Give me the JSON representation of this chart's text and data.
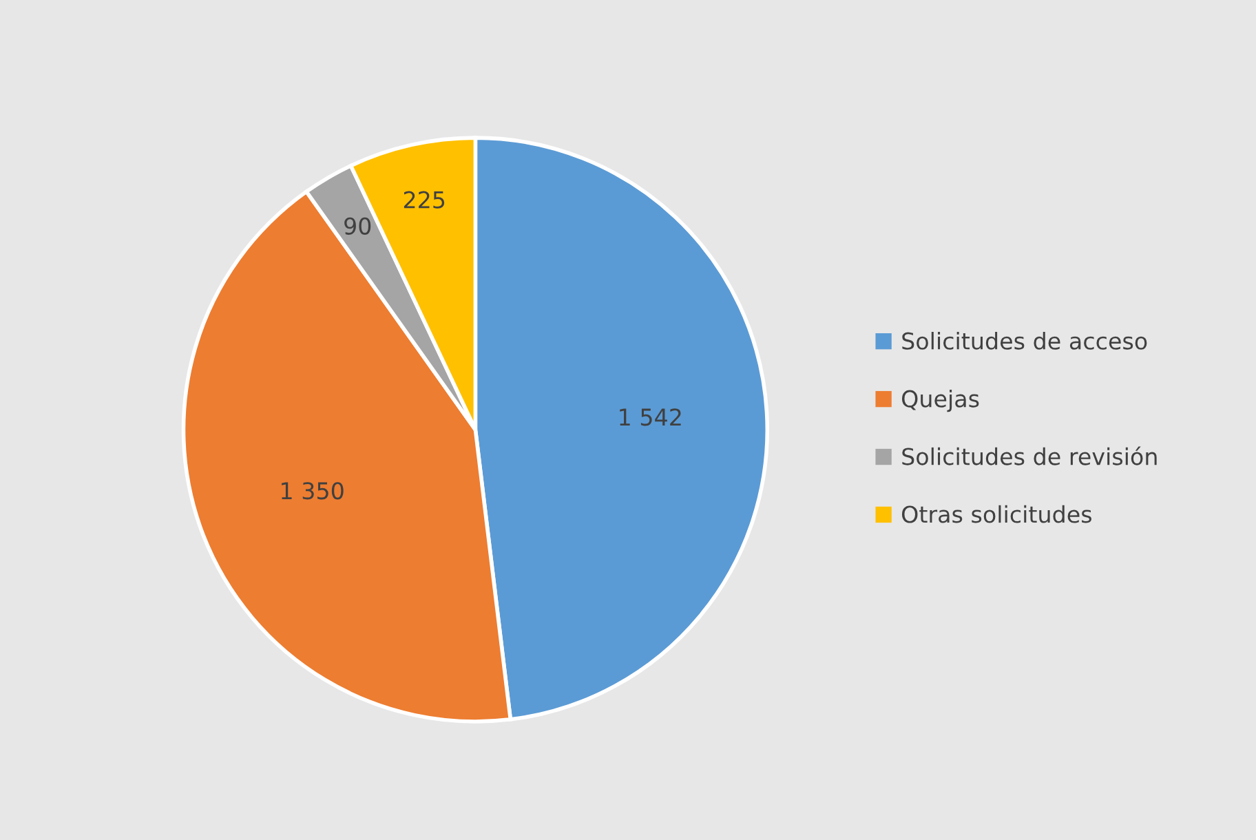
{
  "chart_data": {
    "type": "pie",
    "categories": [
      "Solicitudes de acceso",
      "Quejas",
      "Solicitudes de revisión",
      "Otras solicitudes"
    ],
    "values": [
      1542,
      1350,
      90,
      225
    ],
    "value_labels": [
      "1 542",
      "1 350",
      "90",
      "225"
    ],
    "colors": [
      "#5b9bd5",
      "#ed7d31",
      "#a5a5a5",
      "#ffc000"
    ],
    "legend": "right"
  }
}
